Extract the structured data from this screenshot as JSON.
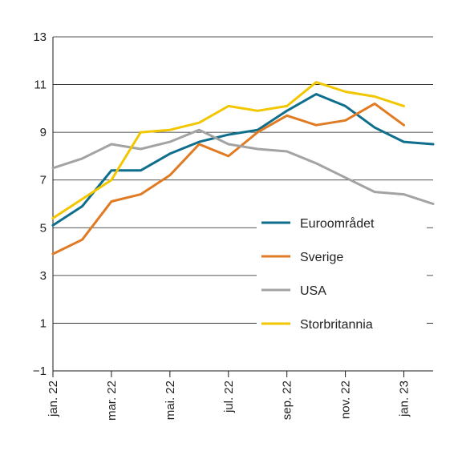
{
  "chart_data": {
    "type": "line",
    "x": [
      "jan. 22",
      "feb. 22",
      "mar. 22",
      "apr. 22",
      "mai. 22",
      "jun. 22",
      "jul. 22",
      "aug. 22",
      "sep. 22",
      "okt. 22",
      "nov. 22",
      "des. 22",
      "jan. 23",
      "feb. 23"
    ],
    "xtick_labels": [
      "jan. 22",
      "mar. 22",
      "mai. 22",
      "jul. 22",
      "sep. 22",
      "nov. 22",
      "jan. 23"
    ],
    "ylim": [
      -1,
      13
    ],
    "yticks": [
      -1,
      1,
      3,
      5,
      7,
      9,
      11,
      13
    ],
    "grid": true,
    "legend_position": "lower-right",
    "series": [
      {
        "name": "Euroområdet",
        "color": "#0e6e8c",
        "values": [
          5.1,
          5.9,
          7.4,
          7.4,
          8.1,
          8.6,
          8.9,
          9.1,
          9.9,
          10.6,
          10.1,
          9.2,
          8.6,
          8.5
        ]
      },
      {
        "name": "Sverige",
        "color": "#e07b23",
        "values": [
          3.9,
          4.5,
          6.1,
          6.4,
          7.2,
          8.5,
          8.0,
          9.0,
          9.7,
          9.3,
          9.5,
          10.2,
          9.3,
          null
        ]
      },
      {
        "name": "USA",
        "color": "#a3a3a3",
        "values": [
          7.5,
          7.9,
          8.5,
          8.3,
          8.6,
          9.1,
          8.5,
          8.3,
          8.2,
          7.7,
          7.1,
          6.5,
          6.4,
          6.0
        ]
      },
      {
        "name": "Storbritannia",
        "color": "#f2c700",
        "values": [
          5.4,
          6.2,
          7.0,
          9.0,
          9.1,
          9.4,
          10.1,
          9.9,
          10.1,
          11.1,
          10.7,
          10.5,
          10.1,
          null
        ]
      }
    ]
  }
}
